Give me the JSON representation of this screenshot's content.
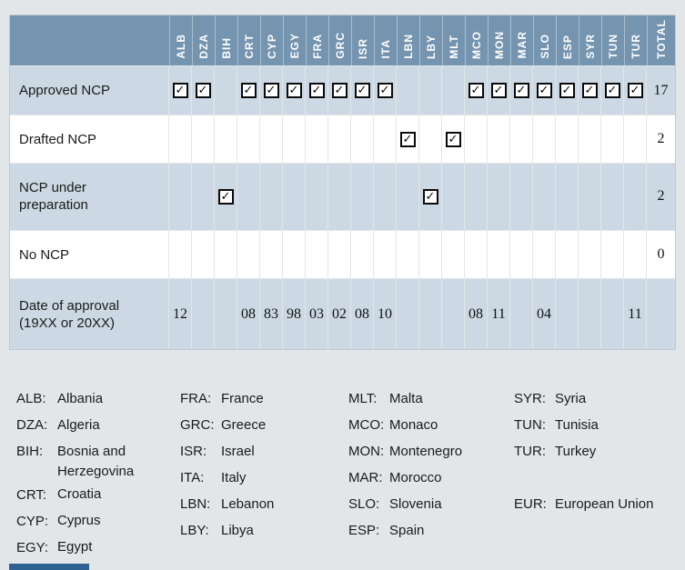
{
  "table": {
    "columns": [
      "ALB",
      "DZA",
      "BIH",
      "CRT",
      "CYP",
      "EGY",
      "FRA",
      "GRC",
      "ISR",
      "ITA",
      "LBN",
      "LBY",
      "MLT",
      "MCO",
      "MON",
      "MAR",
      "SLO",
      "ESP",
      "SYR",
      "TUN",
      "TUR"
    ],
    "total_label": "TOTAL",
    "rows": [
      {
        "label": "Approved NCP",
        "type": "checks",
        "cells": [
          1,
          1,
          0,
          1,
          1,
          1,
          1,
          1,
          1,
          1,
          0,
          0,
          0,
          1,
          1,
          1,
          1,
          1,
          1,
          1,
          1
        ],
        "total": "17"
      },
      {
        "label": "Drafted NCP",
        "type": "checks",
        "cells": [
          0,
          0,
          0,
          0,
          0,
          0,
          0,
          0,
          0,
          0,
          1,
          0,
          1,
          0,
          0,
          0,
          0,
          0,
          0,
          0,
          0
        ],
        "total": "2"
      },
      {
        "label": "NCP under preparation",
        "type": "checks",
        "cells": [
          0,
          0,
          1,
          0,
          0,
          0,
          0,
          0,
          0,
          0,
          0,
          1,
          0,
          0,
          0,
          0,
          0,
          0,
          0,
          0,
          0
        ],
        "total": "2"
      },
      {
        "label": "No NCP",
        "type": "checks",
        "cells": [
          0,
          0,
          0,
          0,
          0,
          0,
          0,
          0,
          0,
          0,
          0,
          0,
          0,
          0,
          0,
          0,
          0,
          0,
          0,
          0,
          0
        ],
        "total": "0"
      },
      {
        "label": "Date of approval (19XX or 20XX)",
        "type": "text",
        "cells": [
          "12",
          "",
          "",
          "08",
          "83",
          "98",
          "03",
          "02",
          "08",
          "10",
          "",
          "",
          "",
          "08",
          "11",
          "",
          "04",
          "",
          "",
          "",
          "11"
        ],
        "total": ""
      }
    ]
  },
  "legend": {
    "columns": [
      [
        {
          "code": "ALB:",
          "name": "Albania"
        },
        {
          "code": "DZA:",
          "name": "Algeria"
        },
        {
          "code": "BIH:",
          "name": "Bosnia and Herzegovina"
        },
        {
          "code": "CRT:",
          "name": "Croatia"
        },
        {
          "code": "CYP:",
          "name": "Cyprus"
        },
        {
          "code": "EGY:",
          "name": "Egypt"
        }
      ],
      [
        {
          "code": "FRA:",
          "name": "France"
        },
        {
          "code": "GRC:",
          "name": "Greece"
        },
        {
          "code": "ISR:",
          "name": "Israel"
        },
        {
          "code": "ITA:",
          "name": "Italy"
        },
        {
          "code": "LBN:",
          "name": "Lebanon"
        },
        {
          "code": "LBY:",
          "name": "Libya"
        }
      ],
      [
        {
          "code": "MLT:",
          "name": "Malta"
        },
        {
          "code": "MCO:",
          "name": "Monaco"
        },
        {
          "code": "MON:",
          "name": "Montenegro"
        },
        {
          "code": "MAR:",
          "name": "Morocco"
        },
        {
          "code": "SLO:",
          "name": "Slovenia"
        },
        {
          "code": "ESP:",
          "name": "Spain"
        }
      ],
      [
        {
          "code": "SYR:",
          "name": "Syria"
        },
        {
          "code": "TUN:",
          "name": "Tunisia"
        },
        {
          "code": "TUR:",
          "name": "Turkey"
        },
        {
          "spacer": true
        },
        {
          "code": "EUR:",
          "name": "European Union"
        }
      ]
    ]
  },
  "icons": {
    "checked_checkbox": "✓"
  },
  "colors": {
    "page_bg": "#E3E6E8",
    "header_bg": "#7494B0",
    "row_alt_bg": "#CCD9E4",
    "row_bg": "#FFFFFF",
    "grid_line": "#E3E6E8",
    "accent_bar": "#2E6293",
    "text": "#1A1A1A",
    "header_text": "#FFFFFF"
  }
}
